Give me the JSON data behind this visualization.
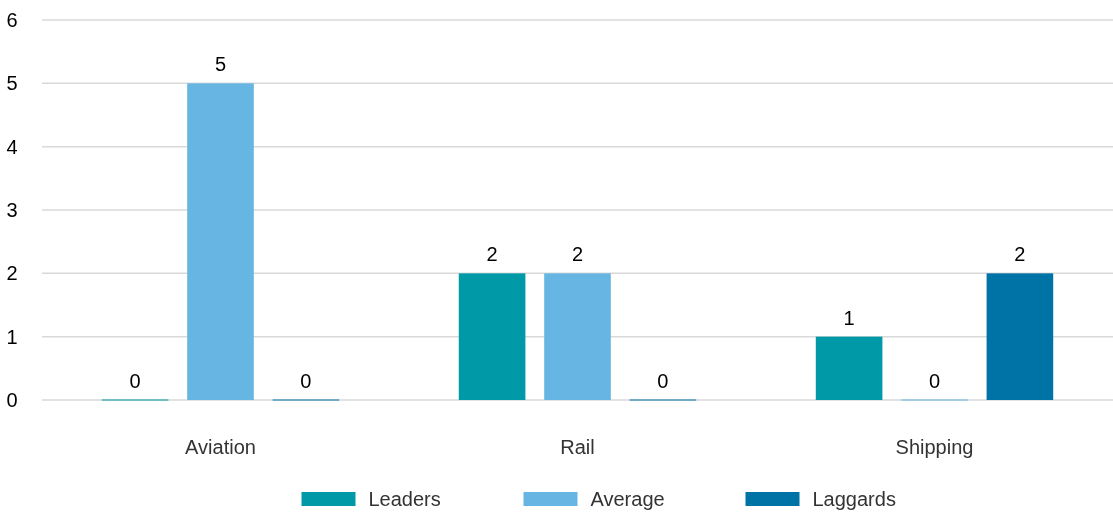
{
  "chart_data": {
    "type": "bar",
    "categories": [
      "Aviation",
      "Rail",
      "Shipping"
    ],
    "series": [
      {
        "name": "Leaders",
        "color": "#0099a8",
        "values": [
          0,
          2,
          1
        ]
      },
      {
        "name": "Average",
        "color": "#66b5e3",
        "values": [
          5,
          2,
          0
        ]
      },
      {
        "name": "Laggards",
        "color": "#0073a6",
        "values": [
          0,
          0,
          2
        ]
      }
    ],
    "ylim": [
      0,
      6
    ],
    "yticks": [
      0,
      1,
      2,
      3,
      4,
      5,
      6
    ],
    "grid": "y",
    "data_labels": true,
    "legend": "bottom"
  }
}
